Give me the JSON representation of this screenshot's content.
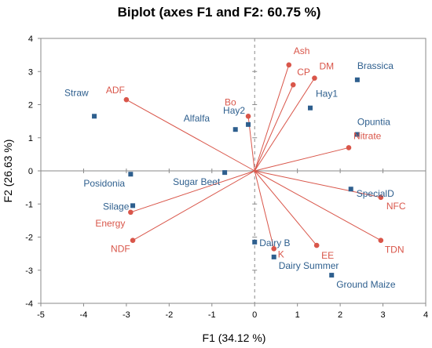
{
  "colors": {
    "observation": "#2E5F8E",
    "variable": "#D9564A",
    "axis": "#8A8A8A",
    "frame": "#8A8A8A"
  },
  "chart_data": {
    "type": "scatter",
    "title": "Biplot (axes F1 and F2: 60.75 %)",
    "xlabel": "F1 (34.12 %)",
    "ylabel": "F2 (26.63 %)",
    "xlim": [
      -5,
      4
    ],
    "ylim": [
      -4,
      4
    ],
    "x_ticks": [
      -5,
      -4,
      -3,
      -2,
      -1,
      0,
      1,
      2,
      3,
      4
    ],
    "y_ticks": [
      -4,
      -3,
      -2,
      -1,
      0,
      1,
      2,
      3,
      4
    ],
    "grid": false,
    "observations": [
      {
        "label": "Straw",
        "x": -3.75,
        "y": 1.65
      },
      {
        "label": "Posidonia",
        "x": -2.9,
        "y": -0.1
      },
      {
        "label": "Silage",
        "x": -2.85,
        "y": -1.05
      },
      {
        "label": "Sugar Beet",
        "x": -0.7,
        "y": -0.05
      },
      {
        "label": "Alfalfa",
        "x": -0.45,
        "y": 1.25
      },
      {
        "label": "Hay2",
        "x": -0.15,
        "y": 1.4
      },
      {
        "label": "Hay1",
        "x": 1.3,
        "y": 1.9
      },
      {
        "label": "Brassica",
        "x": 2.4,
        "y": 2.75
      },
      {
        "label": "Opuntia",
        "x": 2.4,
        "y": 1.1
      },
      {
        "label": "SpecialD",
        "x": 2.25,
        "y": -0.55
      },
      {
        "label": "Dairy B",
        "x": 0,
        "y": -2.15
      },
      {
        "label": "Dairy Summer",
        "x": 0.45,
        "y": -2.6
      },
      {
        "label": "Ground Maize",
        "x": 1.8,
        "y": -3.15
      }
    ],
    "variables": [
      {
        "label": "ADF",
        "x": -3.0,
        "y": 2.15
      },
      {
        "label": "Bo",
        "x": -0.15,
        "y": 1.65
      },
      {
        "label": "Ash",
        "x": 0.8,
        "y": 3.2
      },
      {
        "label": "CP",
        "x": 0.9,
        "y": 2.6
      },
      {
        "label": "DM",
        "x": 1.4,
        "y": 2.8
      },
      {
        "label": "Nitrate",
        "x": 2.2,
        "y": 0.7
      },
      {
        "label": "NFC",
        "x": 2.95,
        "y": -0.8
      },
      {
        "label": "TDN",
        "x": 2.95,
        "y": -2.1
      },
      {
        "label": "EE",
        "x": 1.45,
        "y": -2.25
      },
      {
        "label": "K",
        "x": 0.45,
        "y": -2.35
      },
      {
        "label": "NDF",
        "x": -2.85,
        "y": -2.1
      },
      {
        "label": "Energy",
        "x": -2.9,
        "y": -1.25
      }
    ]
  }
}
